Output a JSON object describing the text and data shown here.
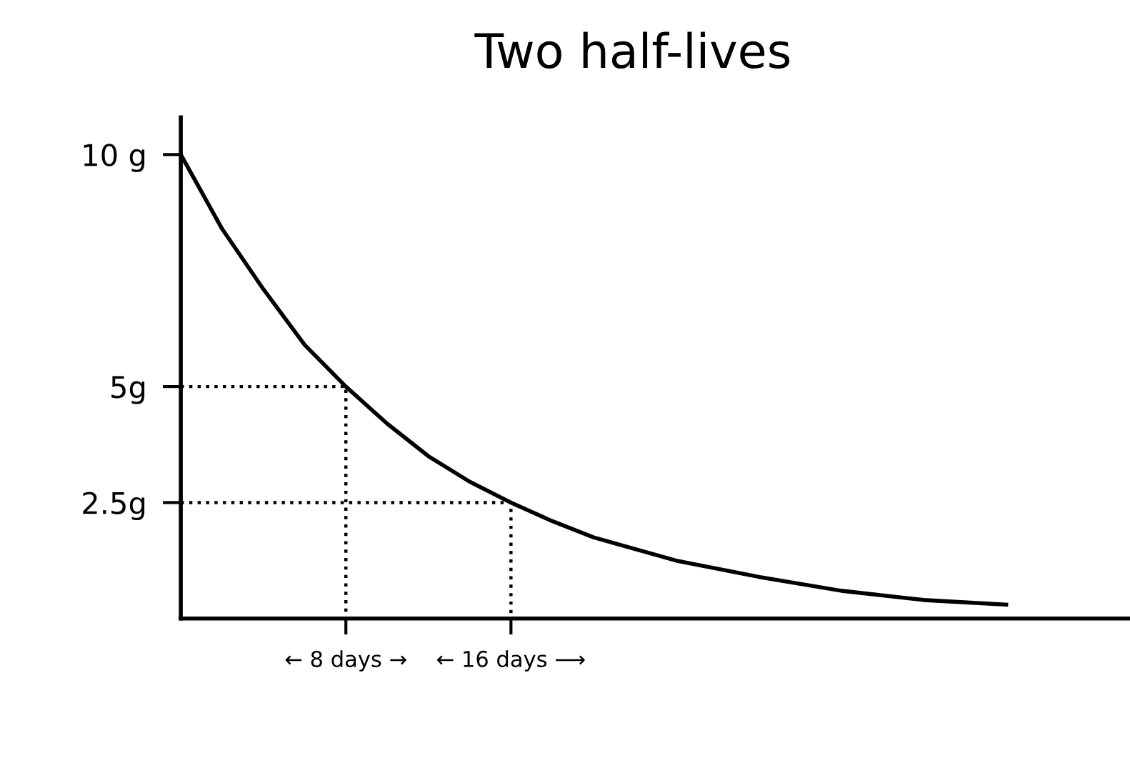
{
  "chart_data": {
    "type": "line",
    "title": "Two half-lives",
    "series": [
      {
        "color": "#000000",
        "line_style": "solid",
        "x": [
          0,
          2,
          4,
          6,
          8,
          10,
          12,
          14,
          16,
          18,
          20,
          24,
          28,
          32,
          36,
          40
        ],
        "values": [
          10,
          8.4,
          7.1,
          5.9,
          5,
          4.2,
          3.5,
          2.95,
          2.5,
          2.1,
          1.75,
          1.25,
          0.9,
          0.6,
          0.4,
          0.3
        ]
      },
      {
        "color": "#000000",
        "line_style": "dotted",
        "x": [
          0,
          8,
          8
        ],
        "values": [
          5,
          5,
          0
        ]
      },
      {
        "color": "#000000",
        "line_style": "dotted",
        "x": [
          0,
          16,
          16
        ],
        "values": [
          2.5,
          2.5,
          0
        ]
      }
    ],
    "xlim": [
      0,
      46
    ],
    "ylim": [
      0,
      10.8
    ],
    "xticks": [
      {
        "value": 8,
        "label": "← 8 days →"
      },
      {
        "value": 16,
        "label": "← 16 days ⟶"
      }
    ],
    "yticks": [
      {
        "value": 2.5,
        "label": "2.5g"
      },
      {
        "value": 5,
        "label": "5g"
      },
      {
        "value": 10,
        "label": "10 g"
      }
    ],
    "grid": false
  }
}
